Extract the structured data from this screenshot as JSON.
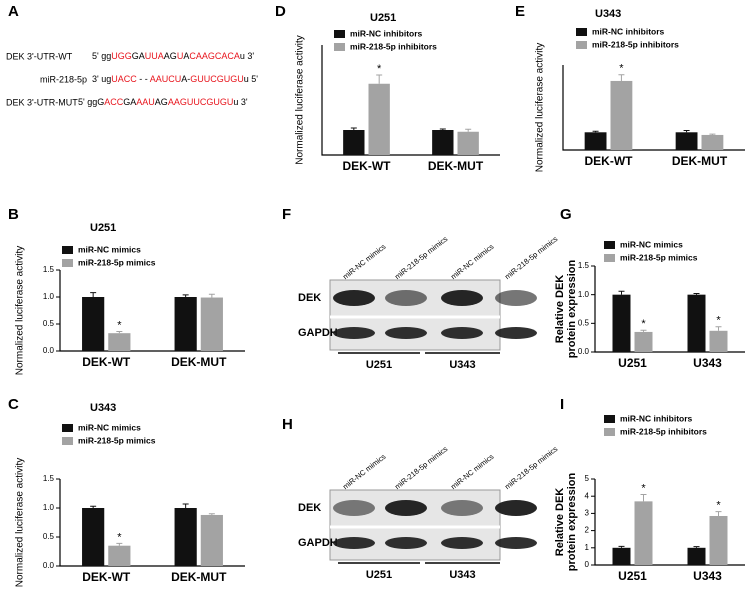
{
  "sequence_panel": {
    "label": "A",
    "rows": [
      {
        "name": "DEK 3'-UTR-WT",
        "segments": [
          {
            "text": "5' gg",
            "color": "#000000"
          },
          {
            "text": "UGG",
            "color": "#e8141c"
          },
          {
            "text": "GA",
            "color": "#000000"
          },
          {
            "text": "UUA",
            "color": "#e8141c"
          },
          {
            "text": "AG",
            "color": "#000000"
          },
          {
            "text": "U",
            "color": "#e8141c"
          },
          {
            "text": "A",
            "color": "#000000"
          },
          {
            "text": "CAAGCACA",
            "color": "#e8141c"
          },
          {
            "text": "u 3'",
            "color": "#000000"
          }
        ]
      },
      {
        "name": "miR-218-5p",
        "segments": [
          {
            "text": "3' ug",
            "color": "#000000"
          },
          {
            "text": "UACC",
            "color": "#e8141c"
          },
          {
            "text": " - - ",
            "color": "#000000"
          },
          {
            "text": "AAUCU",
            "color": "#e8141c"
          },
          {
            "text": "A-",
            "color": "#000000"
          },
          {
            "text": "GUUCGUGU",
            "color": "#e8141c"
          },
          {
            "text": "u 5'",
            "color": "#000000"
          }
        ]
      },
      {
        "name": "DEK 3'-UTR-MUT",
        "segments": [
          {
            "text": "5' ggG",
            "color": "#000000"
          },
          {
            "text": "ACC",
            "color": "#e8141c"
          },
          {
            "text": "GA",
            "color": "#000000"
          },
          {
            "text": "AAU",
            "color": "#e8141c"
          },
          {
            "text": "AG",
            "color": "#000000"
          },
          {
            "text": "AAGUUCGUGU",
            "color": "#e8141c"
          },
          {
            "text": "u 3'",
            "color": "#000000"
          }
        ]
      }
    ]
  },
  "blots": [
    {
      "label": "F",
      "lanes": [
        "miR-NC mimics",
        "miR-218-5p mimics",
        "miR-NC mimics",
        "miR-218-5p mimics"
      ],
      "rows": [
        "DEK",
        "GAPDH"
      ],
      "groups": [
        "U251",
        "U343"
      ]
    },
    {
      "label": "H",
      "lanes": [
        "miR-NC mimics",
        "miR-218-5p mimics",
        "miR-NC mimics",
        "miR-218-5p mimics"
      ],
      "rows": [
        "DEK",
        "GAPDH"
      ],
      "groups": [
        "U251",
        "U343"
      ]
    }
  ],
  "chart_data": [
    {
      "type": "bar",
      "label": "D",
      "title": "U251",
      "ylabel": "Normalized luciferase activity",
      "categories": [
        "DEK-WT",
        "DEK-MUT"
      ],
      "ylim": [
        0,
        4.4
      ],
      "series": [
        {
          "name": "miR-NC inhibitors",
          "color": "#111111",
          "values": [
            1.0,
            1.0
          ],
          "errors": [
            0.08,
            0.04
          ]
        },
        {
          "name": "miR-218-5p inhibitors",
          "color": "#a3a3a3",
          "values": [
            2.85,
            0.93
          ],
          "errors": [
            0.35,
            0.1
          ]
        }
      ],
      "annotations": [
        "*"
      ]
    },
    {
      "type": "bar",
      "label": "E",
      "title": "U343",
      "ylabel": "Normalized luciferase activity",
      "categories": [
        "DEK-WT",
        "DEK-MUT"
      ],
      "ylim": [
        0,
        4.8
      ],
      "series": [
        {
          "name": "miR-NC inhibitors",
          "color": "#111111",
          "values": [
            1.0,
            1.0
          ],
          "errors": [
            0.06,
            0.1
          ]
        },
        {
          "name": "miR-218-5p inhibitors",
          "color": "#a3a3a3",
          "values": [
            3.9,
            0.85
          ],
          "errors": [
            0.35,
            0.05
          ]
        }
      ],
      "annotations": [
        "*"
      ]
    },
    {
      "type": "bar",
      "label": "B",
      "title": "U251",
      "ylabel": "Normalized luciferase activity",
      "categories": [
        "DEK-WT",
        "DEK-MUT"
      ],
      "ylim": [
        0,
        1.5
      ],
      "yticks": [
        {
          "value": 0,
          "label": "0.0"
        },
        0.5,
        {
          "value": 1,
          "label": "1.0"
        },
        1.5
      ],
      "series": [
        {
          "name": "miR-NC mimics",
          "color": "#111111",
          "values": [
            1.0,
            1.0
          ],
          "errors": [
            0.08,
            0.04
          ]
        },
        {
          "name": "miR-218-5p mimics",
          "color": "#a3a3a3",
          "values": [
            0.33,
            0.99
          ],
          "errors": [
            0.03,
            0.06
          ]
        }
      ],
      "annotations": [
        "*"
      ]
    },
    {
      "type": "bar",
      "label": "C",
      "title": "U343",
      "ylabel": "Normalized luciferase activity",
      "categories": [
        "DEK-WT",
        "DEK-MUT"
      ],
      "ylim": [
        0,
        1.5
      ],
      "yticks": [
        {
          "value": 0,
          "label": "0.0"
        },
        0.5,
        {
          "value": 1,
          "label": "1.0"
        },
        1.5
      ],
      "series": [
        {
          "name": "miR-NC mimics",
          "color": "#111111",
          "values": [
            1.0,
            1.0
          ],
          "errors": [
            0.03,
            0.07
          ]
        },
        {
          "name": "miR-218-5p mimics",
          "color": "#a3a3a3",
          "values": [
            0.35,
            0.88
          ],
          "errors": [
            0.04,
            0.02
          ]
        }
      ],
      "annotations": [
        "*"
      ]
    },
    {
      "type": "bar",
      "label": "G",
      "ylabel": [
        "Relative DEK",
        "protein expression"
      ],
      "categories": [
        "U251",
        "U343"
      ],
      "ylim": [
        0,
        1.5
      ],
      "yticks": [
        {
          "value": 0,
          "label": "0.0"
        },
        0.5,
        {
          "value": 1,
          "label": "1.0"
        },
        1.5
      ],
      "series": [
        {
          "name": "miR-NC mimics",
          "color": "#111111",
          "values": [
            1.0,
            1.0
          ],
          "errors": [
            0.06,
            0.02
          ]
        },
        {
          "name": "miR-218-5p mimics",
          "color": "#a3a3a3",
          "values": [
            0.35,
            0.37
          ],
          "errors": [
            0.03,
            0.07
          ]
        }
      ],
      "annotations": [
        "*",
        "*"
      ]
    },
    {
      "type": "bar",
      "label": "I",
      "ylabel": [
        "Relative DEK",
        "protein expression"
      ],
      "categories": [
        "U251",
        "U343"
      ],
      "ylim": [
        0,
        5
      ],
      "yticks": [
        0,
        1,
        2,
        3,
        4,
        5
      ],
      "series": [
        {
          "name": "miR-NC inhibitors",
          "color": "#111111",
          "values": [
            1.0,
            1.0
          ],
          "errors": [
            0.08,
            0.07
          ]
        },
        {
          "name": "miR-218-5p inhibitors",
          "color": "#a3a3a3",
          "values": [
            3.7,
            2.85
          ],
          "errors": [
            0.4,
            0.25
          ]
        }
      ],
      "annotations": [
        "*",
        "*"
      ]
    }
  ]
}
